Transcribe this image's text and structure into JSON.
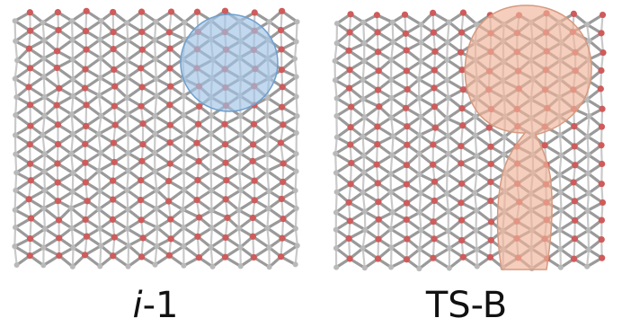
{
  "panels": [
    {
      "id": "left",
      "caption_prefix": "i",
      "caption_suffix": "-1",
      "highlight_color": "#9fc3e6",
      "highlight_stroke": "#6d9fcf"
    },
    {
      "id": "right",
      "caption": "TS-B",
      "highlight_color": "#efb49a",
      "highlight_stroke": "#d69a80"
    }
  ],
  "colors": {
    "bond": "#9a9a9a",
    "bond_light": "#c9c9c9",
    "atom_red": "#cf5b5b",
    "atom_grey": "#b9b9b9"
  }
}
